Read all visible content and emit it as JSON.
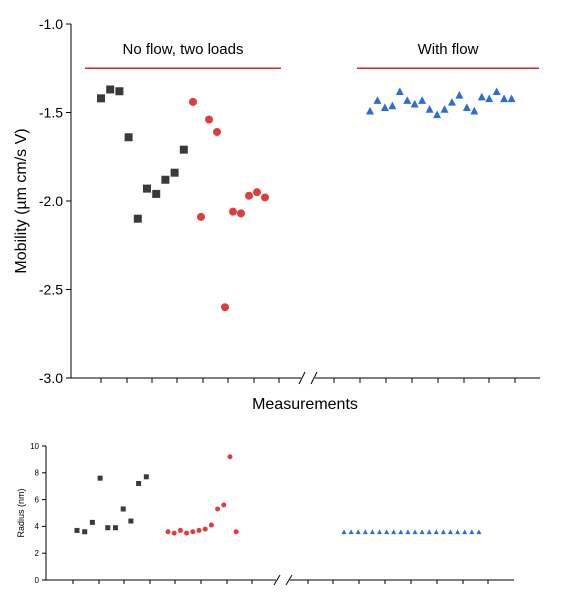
{
  "chart_data": [
    {
      "type": "scatter",
      "xlabel": "Measurements",
      "ylabel": "Mobility (µm cm/s V)",
      "ylim": [
        -3.0,
        -1.0
      ],
      "yticks": [
        "-1.0",
        "-1.5",
        "-2.0",
        "-2.5",
        "-3.0"
      ],
      "yticks_values": [
        -1.0,
        -1.5,
        -2.0,
        -2.5,
        -3.0
      ],
      "axis_break": true,
      "grid": false,
      "annotations": [
        {
          "text": "No flow, two loads",
          "reference_value": -1.25,
          "line_color": "#d62728",
          "group": "left"
        },
        {
          "text": "With flow",
          "reference_value": -1.25,
          "line_color": "#d62728",
          "group": "right"
        }
      ],
      "series": [
        {
          "marker": "square",
          "color": "#3a3a3a",
          "x": [
            1,
            2,
            3,
            4,
            5,
            6,
            7,
            8,
            9,
            10
          ],
          "values": [
            -1.42,
            -1.37,
            -1.38,
            -1.64,
            -2.1,
            -1.93,
            -1.96,
            -1.88,
            -1.84,
            -1.71
          ]
        },
        {
          "marker": "circle",
          "color": "#e03c3c",
          "x": [
            1,
            2,
            3,
            4,
            5,
            6,
            7,
            8,
            9,
            10
          ],
          "values": [
            -1.44,
            -2.09,
            -1.54,
            -1.61,
            -2.6,
            -2.06,
            -2.07,
            -1.97,
            -1.95,
            -1.98
          ]
        },
        {
          "marker": "triangle",
          "color": "#2a6fd0",
          "x": [
            1,
            2,
            3,
            4,
            5,
            6,
            7,
            8,
            9,
            10,
            11,
            12,
            13,
            14,
            15,
            16,
            17,
            18,
            19,
            20
          ],
          "values": [
            -1.49,
            -1.43,
            -1.47,
            -1.46,
            -1.38,
            -1.43,
            -1.45,
            -1.43,
            -1.48,
            -1.51,
            -1.48,
            -1.44,
            -1.4,
            -1.47,
            -1.49,
            -1.41,
            -1.42,
            -1.38,
            -1.42,
            -1.42
          ]
        }
      ]
    },
    {
      "type": "scatter",
      "ylabel": "Radius (nm)",
      "ylim": [
        0,
        10
      ],
      "yticks": [
        "0",
        "2",
        "4",
        "6",
        "8",
        "10"
      ],
      "yticks_values": [
        0,
        2,
        4,
        6,
        8,
        10
      ],
      "axis_break": true,
      "grid": false,
      "series": [
        {
          "marker": "square",
          "color": "#3a3a3a",
          "x": [
            1,
            2,
            3,
            4,
            5,
            6,
            7,
            8,
            9,
            10
          ],
          "values": [
            3.7,
            3.6,
            4.3,
            7.6,
            3.9,
            3.9,
            5.3,
            4.4,
            7.2,
            7.7
          ]
        },
        {
          "marker": "circle",
          "color": "#e03c3c",
          "x": [
            1,
            2,
            3,
            4,
            5,
            6,
            7,
            8,
            9,
            10,
            11,
            12
          ],
          "values": [
            3.6,
            3.5,
            3.7,
            3.5,
            3.6,
            3.7,
            3.8,
            4.1,
            5.3,
            5.6,
            9.2,
            3.6
          ]
        },
        {
          "marker": "triangle",
          "color": "#2a6fd0",
          "x": [
            1,
            2,
            3,
            4,
            5,
            6,
            7,
            8,
            9,
            10,
            11,
            12,
            13,
            14,
            15,
            16,
            17,
            18,
            19,
            20
          ],
          "values": [
            3.6,
            3.6,
            3.6,
            3.6,
            3.6,
            3.6,
            3.6,
            3.6,
            3.6,
            3.6,
            3.6,
            3.6,
            3.6,
            3.6,
            3.6,
            3.6,
            3.6,
            3.6,
            3.6,
            3.6
          ]
        }
      ]
    }
  ]
}
